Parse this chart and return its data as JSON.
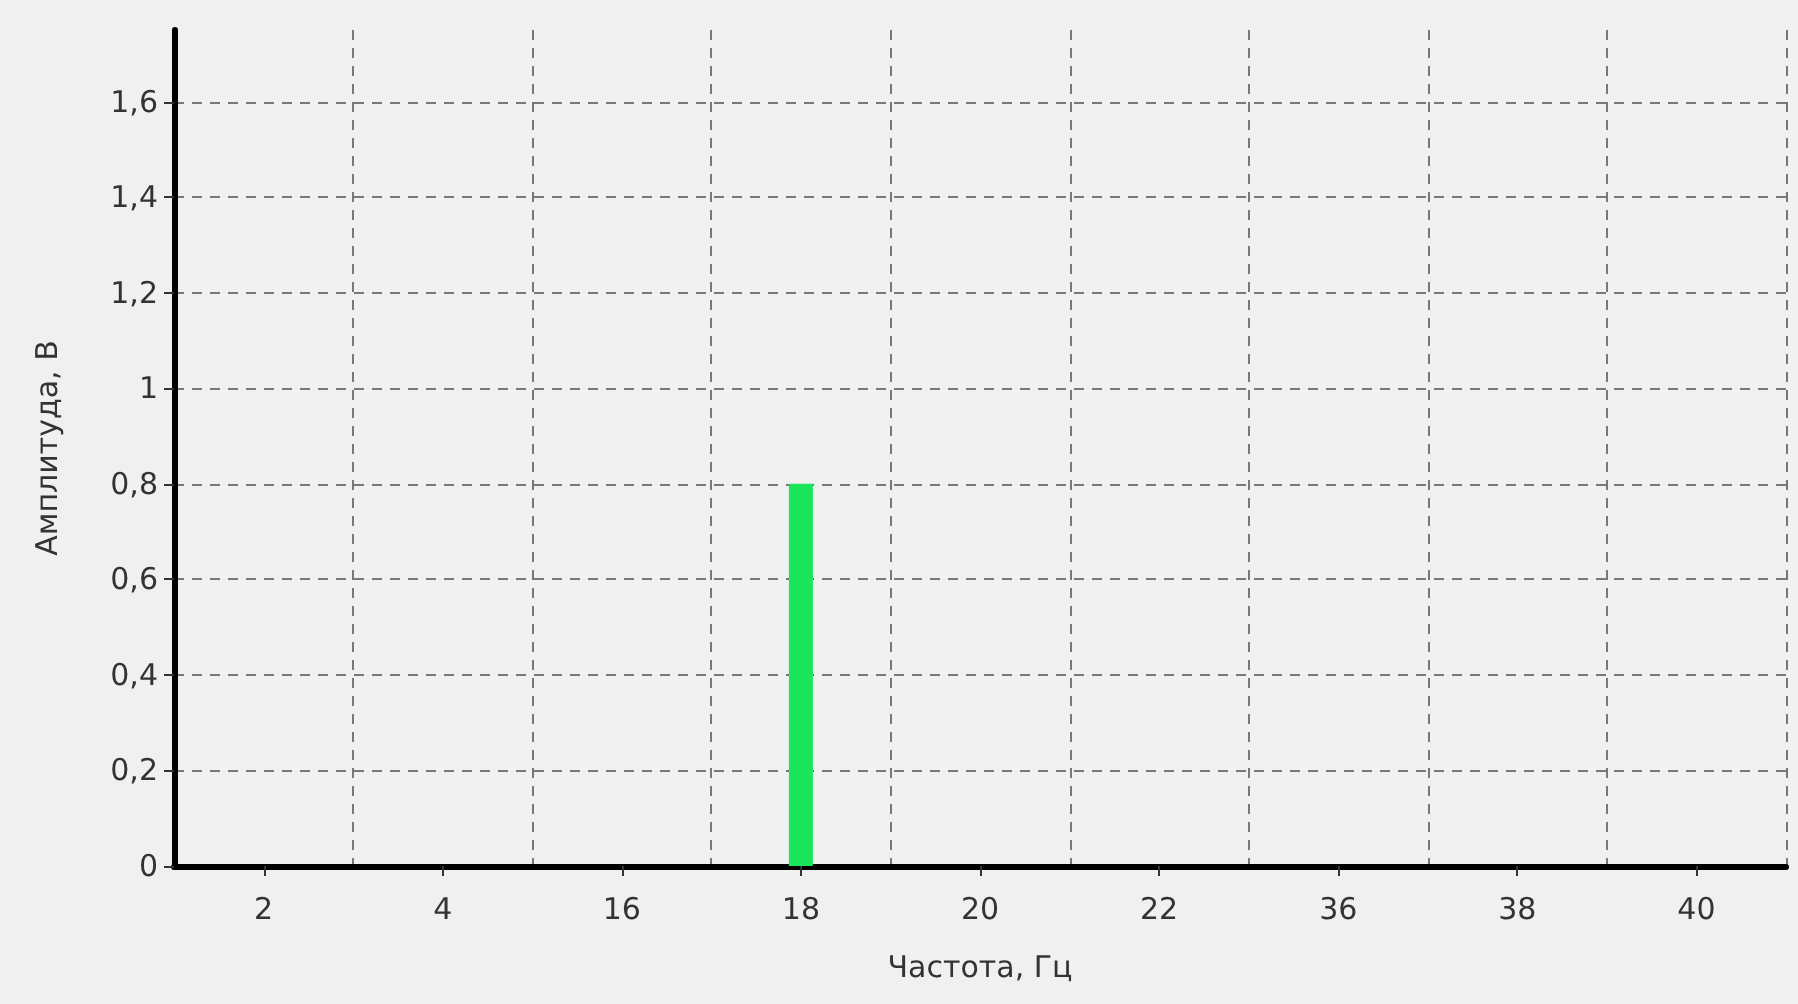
{
  "chart_data": {
    "type": "bar",
    "xlabel": "Частота, Гц",
    "ylabel": "Амплитуда, В",
    "categories": [
      "2",
      "4",
      "16",
      "18",
      "20",
      "22",
      "36",
      "38",
      "40"
    ],
    "values": [
      null,
      null,
      null,
      0.8,
      null,
      null,
      null,
      null,
      null
    ],
    "color": "#19e65a",
    "ylim": [
      0,
      1.75
    ],
    "yticks": [
      0,
      {
        "value": 0.2,
        "label": "0,2"
      },
      {
        "value": 0.4,
        "label": "0,4"
      },
      {
        "value": 0.6,
        "label": "0,6"
      },
      {
        "value": 0.8,
        "label": "0,8"
      },
      1,
      {
        "value": 1.2,
        "label": "1,2"
      },
      {
        "value": 1.4,
        "label": "1,4"
      },
      {
        "value": 1.6,
        "label": "1,6"
      }
    ],
    "grid": true
  }
}
